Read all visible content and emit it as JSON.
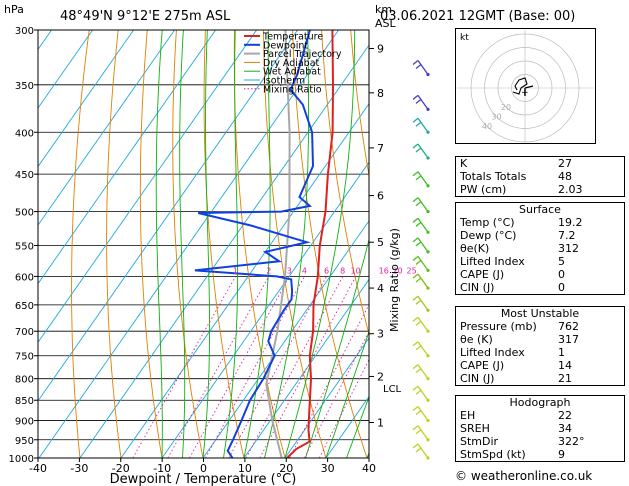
{
  "header": {
    "station": "48°49'N  9°12'E  275m  ASL",
    "date": "03.06.2021  12GMT  (Base: 00)"
  },
  "chart_data": {
    "type": "skew-t",
    "ylabel_left": "hPa",
    "ylabel_right_unit": "km",
    "ylabel_right_unit2": "ASL",
    "xlabel": "Dewpoint / Temperature (°C)",
    "mixing_label": "Mixing Ratio (g/kg)",
    "pressure_levels": [
      300,
      350,
      400,
      450,
      500,
      550,
      600,
      650,
      700,
      750,
      800,
      850,
      900,
      950,
      1000
    ],
    "x_ticks": [
      -40,
      -30,
      -20,
      -10,
      0,
      10,
      20,
      30,
      40
    ],
    "km_ticks": [
      {
        "label": "9",
        "p": 316
      },
      {
        "label": "8",
        "p": 358
      },
      {
        "label": "7",
        "p": 418
      },
      {
        "label": "6",
        "p": 478
      },
      {
        "label": "5",
        "p": 545
      },
      {
        "label": "4",
        "p": 620
      },
      {
        "label": "3",
        "p": 705
      },
      {
        "label": "2",
        "p": 795
      },
      {
        "label": "1",
        "p": 905
      }
    ],
    "lcl_label": "LCL",
    "lcl_p": 812,
    "mixing_ratio_labels": [
      "1",
      "2",
      "3",
      "4",
      "6",
      "8",
      "10",
      "16",
      "20",
      "25"
    ],
    "mixing_ratio_values": [
      1,
      2,
      3,
      4,
      6,
      8,
      10,
      16,
      20,
      25
    ],
    "legend": [
      "Temperature",
      "Dewpoint",
      "Parcel Trajectory",
      "Dry Adiabat",
      "Wet Adiabat",
      "Isotherm",
      "Mixing Ratio"
    ],
    "colors": {
      "temperature": "#e02020",
      "dewpoint": "#1040e0",
      "parcel": "#a8a8a8",
      "dry_adiabat": "#e08000",
      "wet_adiabat": "#10b010",
      "isotherm": "#20a8e0",
      "mixing_ratio": "#e020a0",
      "wind": "#4040c0",
      "wind_low": "#c0d020"
    },
    "temperature": [
      {
        "p": 1000,
        "t": 20.5
      },
      {
        "p": 975,
        "t": 21.2
      },
      {
        "p": 955,
        "t": 23.2
      },
      {
        "p": 925,
        "t": 21.0
      },
      {
        "p": 900,
        "t": 19.4
      },
      {
        "p": 850,
        "t": 16.2
      },
      {
        "p": 800,
        "t": 12.8
      },
      {
        "p": 750,
        "t": 8.6
      },
      {
        "p": 700,
        "t": 5.2
      },
      {
        "p": 650,
        "t": 0.8
      },
      {
        "p": 600,
        "t": -3.0
      },
      {
        "p": 550,
        "t": -7.8
      },
      {
        "p": 500,
        "t": -12.2
      },
      {
        "p": 450,
        "t": -18.0
      },
      {
        "p": 400,
        "t": -24.0
      },
      {
        "p": 350,
        "t": -32.0
      },
      {
        "p": 300,
        "t": -41.5
      }
    ],
    "dewpoint": [
      {
        "p": 1000,
        "t": 7.2
      },
      {
        "p": 980,
        "t": 4.8
      },
      {
        "p": 950,
        "t": 4.2
      },
      {
        "p": 900,
        "t": 3.0
      },
      {
        "p": 850,
        "t": 1.6
      },
      {
        "p": 800,
        "t": 1.2
      },
      {
        "p": 750,
        "t": 0.0
      },
      {
        "p": 720,
        "t": -4.0
      },
      {
        "p": 700,
        "t": -5.0
      },
      {
        "p": 660,
        "t": -5.5
      },
      {
        "p": 640,
        "t": -5.5
      },
      {
        "p": 625,
        "t": -6.8
      },
      {
        "p": 605,
        "t": -9.0
      },
      {
        "p": 600,
        "t": -13.0
      },
      {
        "p": 590,
        "t": -34.0
      },
      {
        "p": 575,
        "t": -15.0
      },
      {
        "p": 560,
        "t": -20.0
      },
      {
        "p": 545,
        "t": -11.5
      },
      {
        "p": 520,
        "t": -28.0
      },
      {
        "p": 502,
        "t": -43.0
      },
      {
        "p": 500,
        "t": -23.0
      },
      {
        "p": 492,
        "t": -17.0
      },
      {
        "p": 480,
        "t": -21.0
      },
      {
        "p": 460,
        "t": -22.0
      },
      {
        "p": 440,
        "t": -23.0
      },
      {
        "p": 400,
        "t": -29.0
      },
      {
        "p": 370,
        "t": -36.0
      },
      {
        "p": 355,
        "t": -41.5
      },
      {
        "p": 340,
        "t": -42.5
      },
      {
        "p": 300,
        "t": -47.0
      }
    ],
    "parcel": [
      {
        "p": 1000,
        "t": 19.2
      },
      {
        "p": 900,
        "t": 10.5
      },
      {
        "p": 812,
        "t": 2.8
      },
      {
        "p": 700,
        "t": -3.5
      },
      {
        "p": 600,
        "t": -11.0
      },
      {
        "p": 500,
        "t": -21.0
      },
      {
        "p": 400,
        "t": -34.5
      },
      {
        "p": 300,
        "t": -53.0
      }
    ],
    "wind_barbs": [
      {
        "p": 340,
        "color": "#4040c0"
      },
      {
        "p": 375,
        "color": "#4040c0"
      },
      {
        "p": 400,
        "color": "#20a8b0"
      },
      {
        "p": 430,
        "color": "#20b080"
      },
      {
        "p": 465,
        "color": "#40c020"
      },
      {
        "p": 500,
        "color": "#40c020"
      },
      {
        "p": 530,
        "color": "#40c020"
      },
      {
        "p": 560,
        "color": "#40c020"
      },
      {
        "p": 590,
        "color": "#60c020"
      },
      {
        "p": 620,
        "color": "#80c020"
      },
      {
        "p": 660,
        "color": "#a0c820"
      },
      {
        "p": 700,
        "color": "#c0d020"
      },
      {
        "p": 750,
        "color": "#c0d020"
      },
      {
        "p": 800,
        "color": "#c0d020"
      },
      {
        "p": 850,
        "color": "#c0d020"
      },
      {
        "p": 900,
        "color": "#c0d020"
      },
      {
        "p": 950,
        "color": "#c0d020"
      },
      {
        "p": 1000,
        "color": "#c0d020"
      }
    ]
  },
  "hodograph": {
    "unit": "kt",
    "ring_labels": [
      "10",
      "20",
      "30",
      "40"
    ]
  },
  "indices": [
    {
      "label": "K",
      "value": "27"
    },
    {
      "label": "Totals Totals",
      "value": "48"
    },
    {
      "label": "PW (cm)",
      "value": "2.03"
    }
  ],
  "surface": {
    "title": "Surface",
    "rows": [
      {
        "label": "Temp (°C)",
        "value": "19.2"
      },
      {
        "label": "Dewp (°C)",
        "value": "7.2"
      },
      {
        "label": "θe(K)",
        "value": "312"
      },
      {
        "label": "Lifted Index",
        "value": "5"
      },
      {
        "label": "CAPE (J)",
        "value": "0"
      },
      {
        "label": "CIN (J)",
        "value": "0"
      }
    ]
  },
  "most_unstable": {
    "title": "Most Unstable",
    "rows": [
      {
        "label": "Pressure (mb)",
        "value": "762"
      },
      {
        "label": "θe (K)",
        "value": "317"
      },
      {
        "label": "Lifted Index",
        "value": "1"
      },
      {
        "label": "CAPE (J)",
        "value": "14"
      },
      {
        "label": "CIN (J)",
        "value": "21"
      }
    ]
  },
  "hodo_table": {
    "title": "Hodograph",
    "rows": [
      {
        "label": "EH",
        "value": "22"
      },
      {
        "label": "SREH",
        "value": "34"
      },
      {
        "label": "StmDir",
        "value": "322°"
      },
      {
        "label": "StmSpd (kt)",
        "value": "9"
      }
    ]
  },
  "credit": "© weatheronline.co.uk"
}
